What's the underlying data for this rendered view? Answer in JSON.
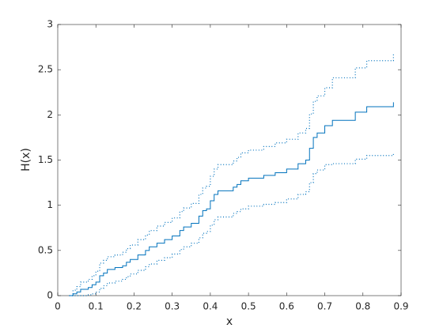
{
  "chart_data": {
    "type": "stairs",
    "xlabel": "x",
    "ylabel": "H(x)",
    "x": [
      0.03,
      0.04,
      0.05,
      0.06,
      0.08,
      0.09,
      0.1,
      0.11,
      0.12,
      0.13,
      0.15,
      0.17,
      0.18,
      0.19,
      0.21,
      0.23,
      0.24,
      0.26,
      0.28,
      0.3,
      0.32,
      0.33,
      0.35,
      0.37,
      0.38,
      0.39,
      0.4,
      0.41,
      0.42,
      0.46,
      0.47,
      0.48,
      0.5,
      0.54,
      0.57,
      0.6,
      0.63,
      0.65,
      0.66,
      0.67,
      0.68,
      0.7,
      0.72,
      0.78,
      0.81,
      0.88
    ],
    "series": [
      {
        "color": "#0072bd",
        "style": "solid",
        "values": [
          0,
          0.02,
          0.04,
          0.07,
          0.09,
          0.12,
          0.15,
          0.22,
          0.25,
          0.29,
          0.31,
          0.33,
          0.37,
          0.4,
          0.45,
          0.5,
          0.54,
          0.58,
          0.62,
          0.66,
          0.72,
          0.76,
          0.8,
          0.88,
          0.94,
          0.96,
          1.05,
          1.12,
          1.16,
          1.2,
          1.23,
          1.27,
          1.3,
          1.33,
          1.36,
          1.4,
          1.46,
          1.5,
          1.63,
          1.75,
          1.8,
          1.88,
          1.94,
          2.03,
          2.09,
          2.14
        ]
      },
      {
        "color": "#0072bd",
        "style": "dotted",
        "values": [
          0,
          0,
          0,
          0,
          0.01,
          0.02,
          0.04,
          0.08,
          0.11,
          0.14,
          0.16,
          0.18,
          0.21,
          0.24,
          0.28,
          0.32,
          0.35,
          0.39,
          0.42,
          0.46,
          0.51,
          0.54,
          0.58,
          0.64,
          0.69,
          0.71,
          0.78,
          0.84,
          0.87,
          0.91,
          0.93,
          0.96,
          0.99,
          1.01,
          1.03,
          1.07,
          1.12,
          1.15,
          1.25,
          1.35,
          1.39,
          1.45,
          1.46,
          1.51,
          1.55,
          1.58
        ]
      },
      {
        "color": "#0072bd",
        "style": "dotted",
        "values": [
          0,
          0.06,
          0.1,
          0.15,
          0.18,
          0.22,
          0.27,
          0.36,
          0.39,
          0.43,
          0.45,
          0.48,
          0.52,
          0.56,
          0.62,
          0.67,
          0.72,
          0.77,
          0.81,
          0.86,
          0.93,
          0.97,
          1.02,
          1.12,
          1.19,
          1.21,
          1.32,
          1.4,
          1.45,
          1.49,
          1.53,
          1.58,
          1.61,
          1.65,
          1.69,
          1.73,
          1.8,
          1.85,
          2.01,
          2.15,
          2.21,
          2.3,
          2.41,
          2.52,
          2.6,
          2.67
        ]
      }
    ],
    "xlim": [
      0,
      0.9
    ],
    "xticks": [
      0,
      0.1,
      0.2,
      0.3,
      0.4,
      0.5,
      0.6,
      0.7,
      0.8,
      0.9
    ],
    "ylim": [
      0,
      3
    ],
    "yticks": [
      0,
      0.5,
      1,
      1.5,
      2,
      2.5,
      3
    ]
  }
}
